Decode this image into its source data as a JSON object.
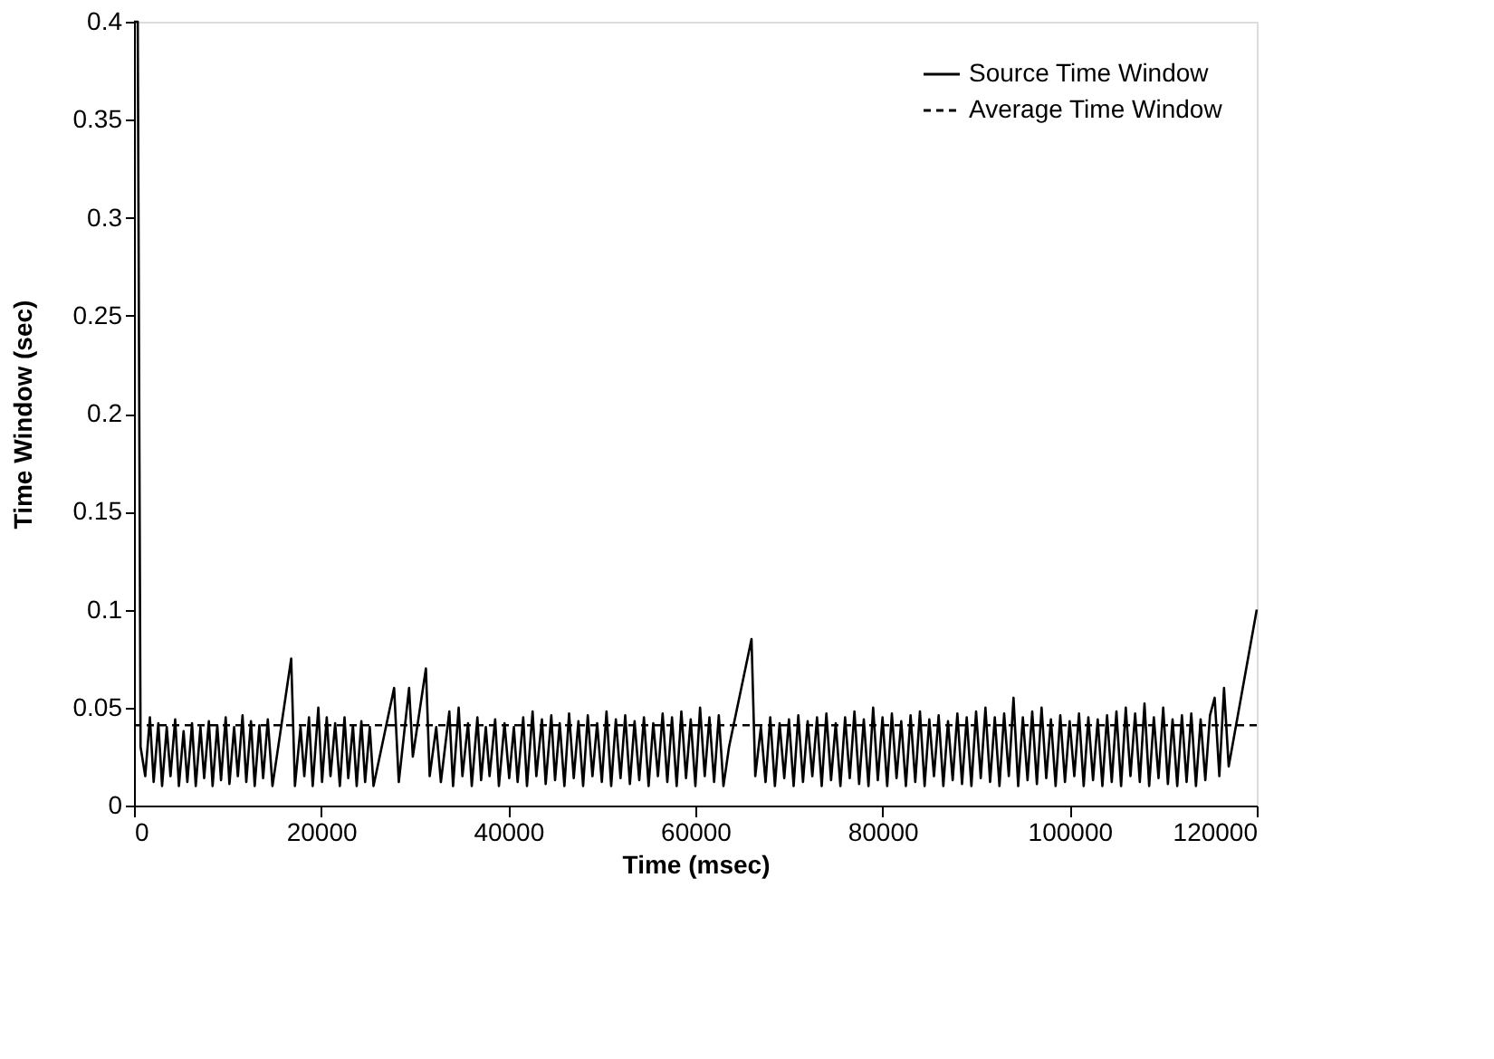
{
  "chart_data": {
    "type": "line",
    "xlabel": "Time (msec)",
    "ylabel": "Time Window (sec)",
    "xlim": [
      0,
      120000
    ],
    "ylim": [
      0,
      0.4
    ],
    "xticks": [
      0,
      20000,
      40000,
      60000,
      80000,
      100000,
      120000
    ],
    "yticks": [
      0,
      0.05,
      0.1,
      0.15,
      0.2,
      0.25,
      0.3,
      0.35,
      0.4
    ],
    "grid": false,
    "legend": "top right",
    "marker": "none",
    "series": [
      {
        "name": "Source Time Window",
        "color": "#000000",
        "line_style": "solid",
        "x": [
          0,
          400,
          700,
          1200,
          1700,
          2100,
          2600,
          3000,
          3500,
          3900,
          4400,
          4800,
          5300,
          5700,
          6200,
          6600,
          7100,
          7500,
          8000,
          8400,
          8900,
          9300,
          9800,
          10200,
          10700,
          11100,
          11600,
          12000,
          12500,
          12900,
          13400,
          13800,
          14300,
          14800,
          16800,
          17200,
          17800,
          18200,
          18700,
          19100,
          19700,
          20100,
          20600,
          21000,
          21500,
          22000,
          22500,
          22900,
          23400,
          23800,
          24300,
          24700,
          25200,
          25600,
          27800,
          28300,
          29400,
          29800,
          31200,
          31600,
          32300,
          32800,
          33700,
          34100,
          34700,
          35100,
          35700,
          36100,
          36700,
          37100,
          37600,
          38000,
          38600,
          39000,
          39600,
          40100,
          40600,
          41000,
          41600,
          42000,
          42600,
          43000,
          43600,
          44000,
          44600,
          45000,
          45500,
          46000,
          46500,
          47000,
          47500,
          48000,
          48500,
          49000,
          49500,
          50000,
          50500,
          51000,
          51500,
          52000,
          52500,
          53000,
          53500,
          54000,
          54500,
          55000,
          55500,
          56000,
          56500,
          57000,
          57500,
          58000,
          58500,
          59000,
          59500,
          60000,
          60500,
          61000,
          61500,
          62000,
          62500,
          63000,
          63600,
          66000,
          66400,
          67000,
          67500,
          68000,
          68500,
          69000,
          69500,
          70000,
          70500,
          71000,
          71500,
          72000,
          72500,
          73000,
          73500,
          74000,
          74500,
          75000,
          75500,
          76000,
          76500,
          77000,
          77500,
          78000,
          78500,
          79000,
          79500,
          80000,
          80500,
          81000,
          81500,
          82000,
          82500,
          83000,
          83500,
          84000,
          84500,
          85000,
          85500,
          86000,
          86500,
          87000,
          87500,
          88000,
          88500,
          89000,
          89500,
          90000,
          90500,
          91000,
          91500,
          92000,
          92500,
          93000,
          93500,
          94000,
          94500,
          95000,
          95500,
          96000,
          96500,
          97000,
          97500,
          98000,
          98500,
          99000,
          99500,
          100000,
          100500,
          101000,
          101500,
          102000,
          102500,
          103000,
          103500,
          104000,
          104500,
          105000,
          105500,
          106000,
          106500,
          107000,
          107500,
          108000,
          108500,
          109000,
          109500,
          110000,
          110500,
          111000,
          111500,
          112000,
          112500,
          113000,
          113500,
          114000,
          114500,
          115000,
          115500,
          116000,
          116500,
          117000,
          120000
        ],
        "values": [
          0.4,
          0.4,
          0.03,
          0.015,
          0.045,
          0.012,
          0.042,
          0.01,
          0.04,
          0.015,
          0.044,
          0.01,
          0.038,
          0.012,
          0.042,
          0.01,
          0.04,
          0.014,
          0.043,
          0.01,
          0.041,
          0.013,
          0.045,
          0.011,
          0.04,
          0.015,
          0.046,
          0.012,
          0.043,
          0.01,
          0.041,
          0.014,
          0.044,
          0.01,
          0.075,
          0.01,
          0.04,
          0.015,
          0.045,
          0.01,
          0.05,
          0.012,
          0.045,
          0.015,
          0.042,
          0.01,
          0.045,
          0.014,
          0.041,
          0.01,
          0.043,
          0.012,
          0.04,
          0.01,
          0.06,
          0.012,
          0.06,
          0.025,
          0.07,
          0.015,
          0.04,
          0.012,
          0.048,
          0.01,
          0.05,
          0.015,
          0.042,
          0.01,
          0.045,
          0.013,
          0.04,
          0.015,
          0.044,
          0.01,
          0.042,
          0.014,
          0.04,
          0.012,
          0.045,
          0.01,
          0.048,
          0.015,
          0.044,
          0.011,
          0.046,
          0.013,
          0.042,
          0.01,
          0.047,
          0.014,
          0.043,
          0.01,
          0.046,
          0.015,
          0.042,
          0.012,
          0.048,
          0.01,
          0.044,
          0.014,
          0.046,
          0.011,
          0.043,
          0.013,
          0.045,
          0.01,
          0.042,
          0.015,
          0.047,
          0.012,
          0.045,
          0.01,
          0.048,
          0.014,
          0.044,
          0.01,
          0.05,
          0.015,
          0.045,
          0.012,
          0.046,
          0.01,
          0.03,
          0.085,
          0.015,
          0.04,
          0.012,
          0.045,
          0.01,
          0.042,
          0.014,
          0.044,
          0.01,
          0.046,
          0.012,
          0.043,
          0.015,
          0.045,
          0.01,
          0.047,
          0.013,
          0.042,
          0.01,
          0.045,
          0.014,
          0.048,
          0.011,
          0.044,
          0.01,
          0.05,
          0.013,
          0.045,
          0.01,
          0.047,
          0.014,
          0.043,
          0.01,
          0.046,
          0.012,
          0.048,
          0.01,
          0.044,
          0.015,
          0.046,
          0.01,
          0.043,
          0.013,
          0.047,
          0.011,
          0.045,
          0.01,
          0.048,
          0.014,
          0.05,
          0.012,
          0.045,
          0.01,
          0.047,
          0.015,
          0.055,
          0.01,
          0.045,
          0.013,
          0.048,
          0.011,
          0.05,
          0.014,
          0.044,
          0.01,
          0.046,
          0.012,
          0.043,
          0.015,
          0.047,
          0.01,
          0.045,
          0.013,
          0.044,
          0.01,
          0.046,
          0.012,
          0.048,
          0.01,
          0.05,
          0.015,
          0.047,
          0.012,
          0.052,
          0.01,
          0.045,
          0.014,
          0.05,
          0.011,
          0.044,
          0.01,
          0.046,
          0.012,
          0.047,
          0.01,
          0.044,
          0.013,
          0.046,
          0.055,
          0.015,
          0.06,
          0.02,
          0.1
        ]
      },
      {
        "name": "Average Time Window",
        "color": "#000000",
        "line_style": "dashed",
        "x": [
          0,
          120000
        ],
        "values": [
          0.041,
          0.041
        ]
      }
    ]
  }
}
